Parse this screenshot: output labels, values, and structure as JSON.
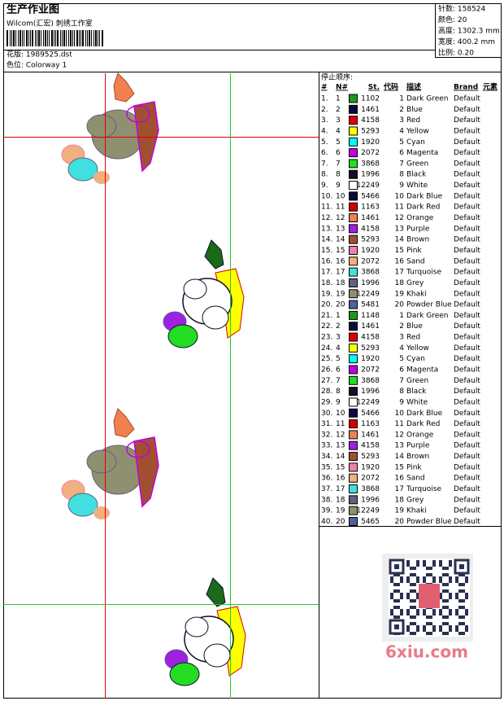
{
  "header": {
    "title": "生产作业图",
    "studio": "Wilcom(汇宏) 刺绣工作室",
    "pattern": "花版: 1989525.dst",
    "colorway": "色位: Colorway 1"
  },
  "info": [
    "针数: 158524",
    "颜色: 20",
    "高度: 1302.3 mm",
    "宽度: 400.2 mm",
    "比例: 0.20"
  ],
  "table": {
    "title": "停止顺序:",
    "columns": [
      "#",
      "N#",
      "St.",
      "代码",
      "描述",
      "Brand",
      "元素"
    ],
    "rows": [
      [
        "1.",
        "1",
        "#1a9a1a",
        "1102",
        "1",
        "Dark Green",
        "Default"
      ],
      [
        "2.",
        "2",
        "#0a0a3a",
        "1461",
        "2",
        "Blue",
        "Default"
      ],
      [
        "3.",
        "3",
        "#e00000",
        "4158",
        "3",
        "Red",
        "Default"
      ],
      [
        "4.",
        "4",
        "#ffff00",
        "5293",
        "4",
        "Yellow",
        "Default"
      ],
      [
        "5.",
        "5",
        "#00ffff",
        "1920",
        "5",
        "Cyan",
        "Default"
      ],
      [
        "6.",
        "6",
        "#c000e0",
        "2072",
        "6",
        "Magenta",
        "Default"
      ],
      [
        "7.",
        "7",
        "#22dd22",
        "3868",
        "7",
        "Green",
        "Default"
      ],
      [
        "8.",
        "8",
        "#101028",
        "1996",
        "8",
        "Black",
        "Default"
      ],
      [
        "9.",
        "9",
        "#ffffff",
        "12249",
        "9",
        "White",
        "Default"
      ],
      [
        "10.",
        "10",
        "#0a0a40",
        "5466",
        "10",
        "Dark Blue",
        "Default"
      ],
      [
        "11.",
        "11",
        "#d00000",
        "1163",
        "11",
        "Dark Red",
        "Default"
      ],
      [
        "12.",
        "12",
        "#f08050",
        "1461",
        "12",
        "Orange",
        "Default"
      ],
      [
        "13.",
        "13",
        "#a020e0",
        "4158",
        "13",
        "Purple",
        "Default"
      ],
      [
        "14.",
        "14",
        "#a05030",
        "5293",
        "14",
        "Brown",
        "Default"
      ],
      [
        "15.",
        "15",
        "#f080b0",
        "1920",
        "15",
        "Pink",
        "Default"
      ],
      [
        "16.",
        "16",
        "#f0b080",
        "2072",
        "16",
        "Sand",
        "Default"
      ],
      [
        "17.",
        "17",
        "#40e0e0",
        "3868",
        "17",
        "Turquoise",
        "Default"
      ],
      [
        "18.",
        "18",
        "#606080",
        "1996",
        "18",
        "Grey",
        "Default"
      ],
      [
        "19.",
        "19",
        "#909070",
        "12249",
        "19",
        "Khaki",
        "Default"
      ],
      [
        "20.",
        "20",
        "#5060a0",
        "5481",
        "20",
        "Powder Blue",
        "Default"
      ],
      [
        "21.",
        "1",
        "#1a9a1a",
        "1148",
        "1",
        "Dark Green",
        "Default"
      ],
      [
        "22.",
        "2",
        "#0a0a3a",
        "1461",
        "2",
        "Blue",
        "Default"
      ],
      [
        "23.",
        "3",
        "#e00000",
        "4158",
        "3",
        "Red",
        "Default"
      ],
      [
        "24.",
        "4",
        "#ffff00",
        "5293",
        "4",
        "Yellow",
        "Default"
      ],
      [
        "25.",
        "5",
        "#00ffff",
        "1920",
        "5",
        "Cyan",
        "Default"
      ],
      [
        "26.",
        "6",
        "#c000e0",
        "2072",
        "6",
        "Magenta",
        "Default"
      ],
      [
        "27.",
        "7",
        "#22dd22",
        "3868",
        "7",
        "Green",
        "Default"
      ],
      [
        "28.",
        "8",
        "#101028",
        "1996",
        "8",
        "Black",
        "Default"
      ],
      [
        "29.",
        "9",
        "#ffffff",
        "12249",
        "9",
        "White",
        "Default"
      ],
      [
        "30.",
        "10",
        "#0a0a40",
        "5466",
        "10",
        "Dark Blue",
        "Default"
      ],
      [
        "31.",
        "11",
        "#d00000",
        "1163",
        "11",
        "Dark Red",
        "Default"
      ],
      [
        "32.",
        "12",
        "#f08050",
        "1461",
        "12",
        "Orange",
        "Default"
      ],
      [
        "33.",
        "13",
        "#a020e0",
        "4158",
        "13",
        "Purple",
        "Default"
      ],
      [
        "34.",
        "14",
        "#a05030",
        "5293",
        "14",
        "Brown",
        "Default"
      ],
      [
        "35.",
        "15",
        "#f080b0",
        "1920",
        "15",
        "Pink",
        "Default"
      ],
      [
        "36.",
        "16",
        "#f0b080",
        "2072",
        "16",
        "Sand",
        "Default"
      ],
      [
        "37.",
        "17",
        "#40e0e0",
        "3868",
        "17",
        "Turquoise",
        "Default"
      ],
      [
        "38.",
        "18",
        "#606080",
        "1996",
        "18",
        "Grey",
        "Default"
      ],
      [
        "39.",
        "19",
        "#909070",
        "12249",
        "19",
        "Khaki",
        "Default"
      ],
      [
        "40.",
        "20",
        "#5060a0",
        "5465",
        "20",
        "Powder Blue",
        "Default"
      ]
    ]
  },
  "watermark": "6xiu.com"
}
